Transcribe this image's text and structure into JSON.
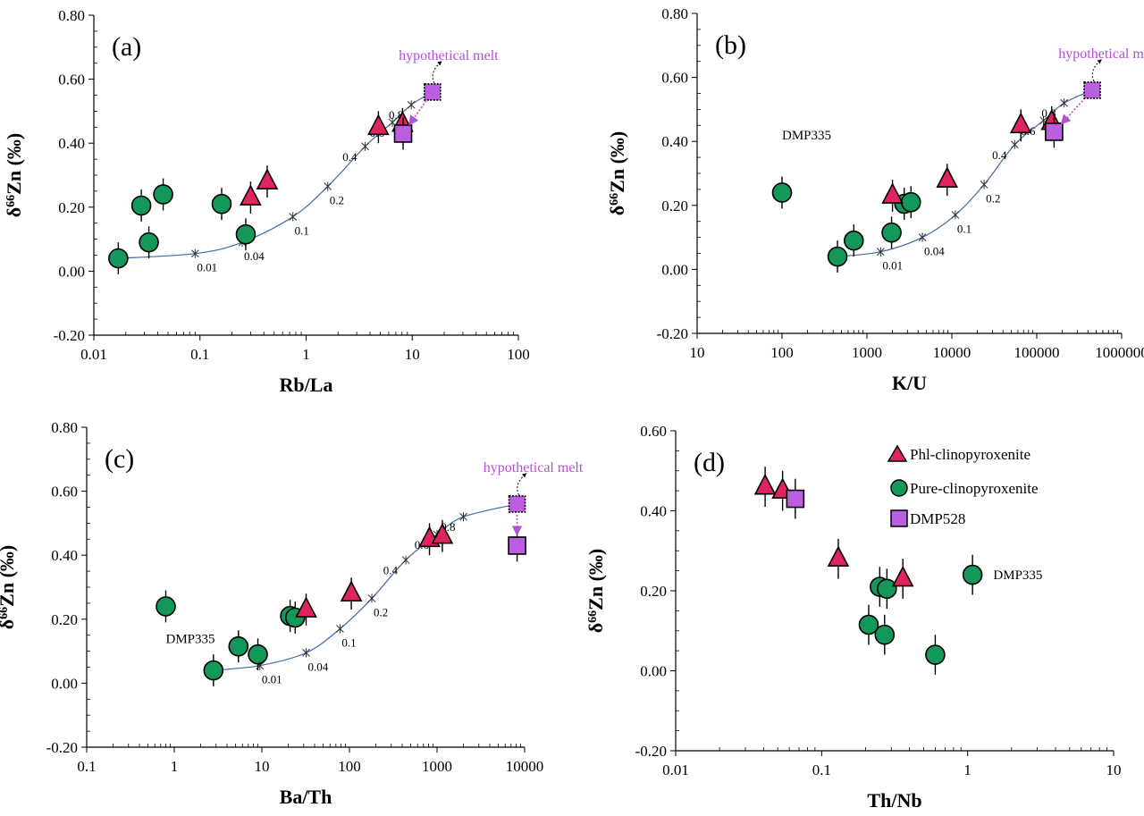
{
  "colors": {
    "triangle": "#e0245e",
    "circle": "#13985a",
    "square": "#bb5fe0",
    "curve": "#3d6aa8",
    "melt": "#b44fd6",
    "axis": "#000000"
  },
  "legend": {
    "items": [
      {
        "label": "Phl-clinopyroxenite",
        "marker": "triangle"
      },
      {
        "label": "Pure-clinopyroxenite",
        "marker": "circle"
      },
      {
        "label": "DMP528",
        "marker": "square"
      }
    ]
  },
  "chart_data": [
    {
      "type": "scatter",
      "panel_label": "(a)",
      "xlabel": "Rb/La",
      "ylabel": "δ66Zn (‰)",
      "xscale": "log",
      "xlim": [
        0.01,
        100
      ],
      "ylim": [
        -0.2,
        0.8
      ],
      "xticks": [
        "0.01",
        "0.1",
        "1",
        "10",
        "100"
      ],
      "yticks": [
        "-0.20",
        "0.00",
        "0.20",
        "0.40",
        "0.60",
        "0.80"
      ],
      "error": 0.05,
      "circles": [
        [
          0.017,
          0.04
        ],
        [
          0.028,
          0.205
        ],
        [
          0.033,
          0.09
        ],
        [
          0.045,
          0.24
        ],
        [
          0.16,
          0.21
        ],
        [
          0.27,
          0.115
        ]
      ],
      "triangles": [
        [
          0.3,
          0.23
        ],
        [
          0.43,
          0.28
        ],
        [
          4.8,
          0.45
        ],
        [
          8.1,
          0.46
        ]
      ],
      "squares": [
        [
          8.2,
          0.43
        ]
      ],
      "melt": [
        15.5,
        0.56
      ],
      "melt_label": "hypothetical melt",
      "curve": [
        [
          0.017,
          0.04
        ],
        [
          0.09,
          0.055
        ],
        [
          0.25,
          0.09
        ],
        [
          0.75,
          0.17
        ],
        [
          1.6,
          0.265
        ],
        [
          3.6,
          0.39
        ],
        [
          6.5,
          0.465
        ],
        [
          9.8,
          0.52
        ],
        [
          15.5,
          0.56
        ]
      ],
      "curve_marks": [
        [
          0.09,
          0.055,
          "0.01"
        ],
        [
          0.25,
          0.09,
          "0.04"
        ],
        [
          0.75,
          0.17,
          "0.1"
        ],
        [
          1.6,
          0.265,
          "0.2"
        ],
        [
          3.6,
          0.39,
          "0.4"
        ],
        [
          6.5,
          0.465,
          "0.6"
        ],
        [
          9.8,
          0.52,
          "0.8"
        ]
      ],
      "annotations": []
    },
    {
      "type": "scatter",
      "panel_label": "(b)",
      "xlabel": "K/U",
      "ylabel": "δ66Zn (‰)",
      "xscale": "log",
      "xlim": [
        10,
        1000000
      ],
      "ylim": [
        -0.2,
        0.8
      ],
      "xticks": [
        "10",
        "100",
        "1000",
        "10000",
        "100000",
        "1000000"
      ],
      "yticks": [
        "-0.20",
        "0.00",
        "0.20",
        "0.40",
        "0.60",
        "0.80"
      ],
      "error": 0.05,
      "circles": [
        [
          100,
          0.24
        ],
        [
          450,
          0.04
        ],
        [
          700,
          0.09
        ],
        [
          1950,
          0.115
        ],
        [
          2750,
          0.205
        ],
        [
          3300,
          0.21
        ]
      ],
      "triangles": [
        [
          2000,
          0.23
        ],
        [
          8800,
          0.28
        ],
        [
          65000,
          0.45
        ],
        [
          150000,
          0.46
        ]
      ],
      "squares": [
        [
          160000,
          0.43
        ]
      ],
      "melt": [
        450000,
        0.56
      ],
      "melt_label": "hypothetical melt",
      "curve": [
        [
          450,
          0.04
        ],
        [
          1450,
          0.055
        ],
        [
          4500,
          0.1
        ],
        [
          11000,
          0.17
        ],
        [
          24000,
          0.265
        ],
        [
          55000,
          0.39
        ],
        [
          120000,
          0.465
        ],
        [
          210000,
          0.52
        ],
        [
          450000,
          0.56
        ]
      ],
      "curve_marks": [
        [
          1450,
          0.055,
          "0.01"
        ],
        [
          4500,
          0.1,
          "0.04"
        ],
        [
          11000,
          0.17,
          "0.1"
        ],
        [
          24000,
          0.265,
          "0.2"
        ],
        [
          55000,
          0.39,
          "0.4"
        ],
        [
          120000,
          0.465,
          "0.6"
        ],
        [
          210000,
          0.52,
          "0.8"
        ]
      ],
      "annotations": [
        {
          "text": "DMP335",
          "x": 100,
          "y": 0.42
        }
      ]
    },
    {
      "type": "scatter",
      "panel_label": "(c)",
      "xlabel": "Ba/Th",
      "ylabel": "δ66Zn (‰)",
      "xscale": "log",
      "xlim": [
        0.1,
        10000
      ],
      "ylim": [
        -0.2,
        0.8
      ],
      "xticks": [
        "0.1",
        "1",
        "10",
        "100",
        "1000",
        "10000"
      ],
      "yticks": [
        "-0.20",
        "0.00",
        "0.20",
        "0.40",
        "0.60",
        "0.80"
      ],
      "error": 0.05,
      "circles": [
        [
          0.8,
          0.24
        ],
        [
          2.8,
          0.04
        ],
        [
          5.4,
          0.115
        ],
        [
          9,
          0.09
        ],
        [
          21,
          0.21
        ],
        [
          24,
          0.205
        ]
      ],
      "triangles": [
        [
          32,
          0.23
        ],
        [
          105,
          0.28
        ],
        [
          820,
          0.45
        ],
        [
          1150,
          0.46
        ]
      ],
      "squares": [
        [
          8200,
          0.43
        ]
      ],
      "melt": [
        8200,
        0.56
      ],
      "melt_label": "hypothetical melt",
      "curve": [
        [
          2.8,
          0.04
        ],
        [
          9.5,
          0.055
        ],
        [
          32,
          0.095
        ],
        [
          78,
          0.17
        ],
        [
          180,
          0.265
        ],
        [
          440,
          0.385
        ],
        [
          1000,
          0.465
        ],
        [
          2000,
          0.52
        ],
        [
          8200,
          0.56
        ]
      ],
      "curve_marks": [
        [
          9.5,
          0.055,
          "0.01"
        ],
        [
          32,
          0.095,
          "0.04"
        ],
        [
          78,
          0.17,
          "0.1"
        ],
        [
          180,
          0.265,
          "0.2"
        ],
        [
          440,
          0.385,
          "0.4"
        ],
        [
          1000,
          0.465,
          "0.6"
        ],
        [
          2000,
          0.52,
          "0.8"
        ]
      ],
      "annotations": [
        {
          "text": "DMP335",
          "x": 0.8,
          "y": 0.14
        }
      ]
    },
    {
      "type": "scatter",
      "panel_label": "(d)",
      "xlabel": "Th/Nb",
      "ylabel": "δ66Zn (‰)",
      "xscale": "log",
      "xlim": [
        0.01,
        10
      ],
      "ylim": [
        -0.2,
        0.6
      ],
      "xticks": [
        "0.01",
        "0.1",
        "1",
        "10"
      ],
      "yticks": [
        "-0.20",
        "0.00",
        "0.20",
        "0.40",
        "0.60"
      ],
      "error": 0.05,
      "circles": [
        [
          0.21,
          0.115
        ],
        [
          0.25,
          0.21
        ],
        [
          0.27,
          0.09
        ],
        [
          0.28,
          0.205
        ],
        [
          0.6,
          0.04
        ],
        [
          1.08,
          0.24
        ]
      ],
      "triangles": [
        [
          0.041,
          0.46
        ],
        [
          0.054,
          0.45
        ],
        [
          0.13,
          0.28
        ],
        [
          0.36,
          0.23
        ]
      ],
      "squares": [
        [
          0.066,
          0.43
        ]
      ],
      "melt": null,
      "melt_label": "",
      "curve": [],
      "curve_marks": [],
      "annotations": [
        {
          "text": "DMP335",
          "x": 1.5,
          "y": 0.24
        }
      ]
    }
  ]
}
